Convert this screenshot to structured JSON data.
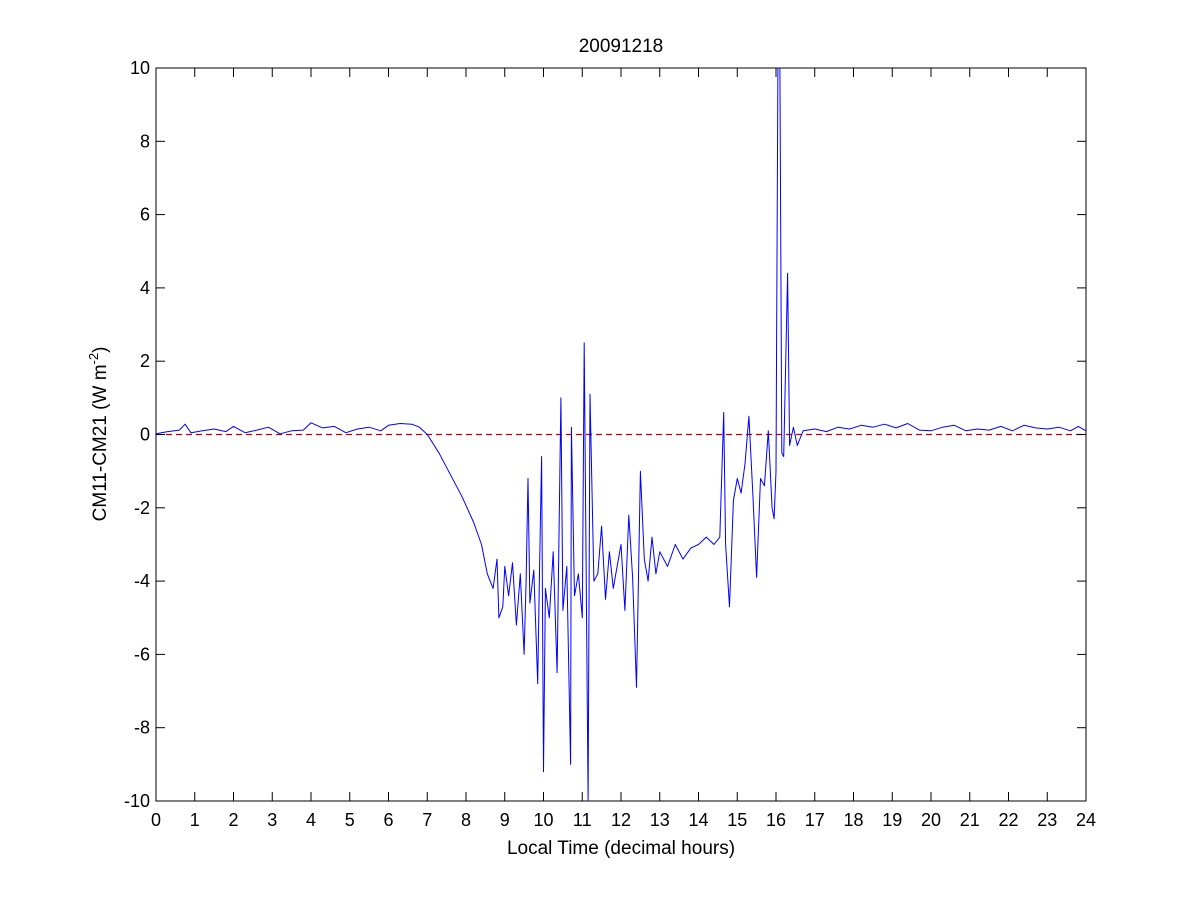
{
  "chart_data": {
    "type": "line",
    "title": "20091218",
    "xlabel": "Local Time (decimal hours)",
    "ylabel_main": "CM11-CM21 (W m",
    "ylabel_sup": "-2",
    "ylabel_close": ")",
    "xlim": [
      0,
      24
    ],
    "ylim": [
      -10,
      10
    ],
    "x_ticks": [
      0,
      1,
      2,
      3,
      4,
      5,
      6,
      7,
      8,
      9,
      10,
      11,
      12,
      13,
      14,
      15,
      16,
      17,
      18,
      19,
      20,
      21,
      22,
      23,
      24
    ],
    "y_ticks": [
      -10,
      -8,
      -6,
      -4,
      -2,
      0,
      2,
      4,
      6,
      8,
      10
    ],
    "grid": false,
    "colors": {
      "series": "#0000ff",
      "reference": "#c00000",
      "axes": "#000000"
    },
    "reference_line": {
      "y": 0,
      "style": "dashed"
    },
    "series": [
      {
        "points": [
          [
            0.0,
            0.02
          ],
          [
            0.3,
            0.08
          ],
          [
            0.6,
            0.12
          ],
          [
            0.75,
            0.28
          ],
          [
            0.9,
            0.05
          ],
          [
            1.2,
            0.1
          ],
          [
            1.5,
            0.15
          ],
          [
            1.8,
            0.08
          ],
          [
            2.0,
            0.22
          ],
          [
            2.3,
            0.05
          ],
          [
            2.6,
            0.12
          ],
          [
            2.9,
            0.2
          ],
          [
            3.2,
            0.02
          ],
          [
            3.5,
            0.1
          ],
          [
            3.8,
            0.12
          ],
          [
            4.0,
            0.32
          ],
          [
            4.3,
            0.18
          ],
          [
            4.6,
            0.22
          ],
          [
            4.9,
            0.05
          ],
          [
            5.2,
            0.15
          ],
          [
            5.5,
            0.2
          ],
          [
            5.8,
            0.1
          ],
          [
            6.0,
            0.25
          ],
          [
            6.3,
            0.3
          ],
          [
            6.6,
            0.28
          ],
          [
            6.8,
            0.2
          ],
          [
            7.0,
            0.0
          ],
          [
            7.3,
            -0.5
          ],
          [
            7.6,
            -1.1
          ],
          [
            7.9,
            -1.7
          ],
          [
            8.2,
            -2.4
          ],
          [
            8.4,
            -3.0
          ],
          [
            8.55,
            -3.8
          ],
          [
            8.7,
            -4.2
          ],
          [
            8.8,
            -3.4
          ],
          [
            8.85,
            -5.0
          ],
          [
            8.95,
            -4.7
          ],
          [
            9.0,
            -3.6
          ],
          [
            9.1,
            -4.4
          ],
          [
            9.2,
            -3.5
          ],
          [
            9.3,
            -5.2
          ],
          [
            9.4,
            -3.8
          ],
          [
            9.5,
            -6.0
          ],
          [
            9.55,
            -4.0
          ],
          [
            9.6,
            -1.2
          ],
          [
            9.65,
            -4.6
          ],
          [
            9.75,
            -3.7
          ],
          [
            9.85,
            -6.8
          ],
          [
            9.9,
            -3.6
          ],
          [
            9.95,
            -0.6
          ],
          [
            10.0,
            -9.2
          ],
          [
            10.05,
            -4.2
          ],
          [
            10.15,
            -5.0
          ],
          [
            10.25,
            -3.2
          ],
          [
            10.35,
            -6.5
          ],
          [
            10.45,
            1.0
          ],
          [
            10.5,
            -4.8
          ],
          [
            10.6,
            -3.6
          ],
          [
            10.7,
            -9.0
          ],
          [
            10.72,
            0.2
          ],
          [
            10.8,
            -4.4
          ],
          [
            10.9,
            -3.8
          ],
          [
            11.0,
            -5.0
          ],
          [
            11.05,
            2.5
          ],
          [
            11.1,
            -3.5
          ],
          [
            11.15,
            -10.0
          ],
          [
            11.2,
            1.1
          ],
          [
            11.3,
            -4.0
          ],
          [
            11.4,
            -3.8
          ],
          [
            11.5,
            -2.5
          ],
          [
            11.6,
            -4.5
          ],
          [
            11.7,
            -3.2
          ],
          [
            11.8,
            -4.2
          ],
          [
            11.9,
            -3.6
          ],
          [
            12.0,
            -3.0
          ],
          [
            12.1,
            -4.8
          ],
          [
            12.2,
            -2.2
          ],
          [
            12.3,
            -3.9
          ],
          [
            12.4,
            -6.9
          ],
          [
            12.5,
            -1.0
          ],
          [
            12.6,
            -3.4
          ],
          [
            12.7,
            -4.0
          ],
          [
            12.8,
            -2.8
          ],
          [
            12.9,
            -3.8
          ],
          [
            13.0,
            -3.2
          ],
          [
            13.2,
            -3.6
          ],
          [
            13.4,
            -3.0
          ],
          [
            13.6,
            -3.4
          ],
          [
            13.8,
            -3.1
          ],
          [
            14.0,
            -3.0
          ],
          [
            14.2,
            -2.8
          ],
          [
            14.4,
            -3.0
          ],
          [
            14.55,
            -2.8
          ],
          [
            14.65,
            0.6
          ],
          [
            14.7,
            -3.0
          ],
          [
            14.8,
            -4.7
          ],
          [
            14.9,
            -1.8
          ],
          [
            15.0,
            -1.2
          ],
          [
            15.1,
            -1.6
          ],
          [
            15.2,
            -0.8
          ],
          [
            15.3,
            0.5
          ],
          [
            15.4,
            -1.6
          ],
          [
            15.5,
            -3.9
          ],
          [
            15.6,
            -1.2
          ],
          [
            15.7,
            -1.4
          ],
          [
            15.8,
            0.1
          ],
          [
            15.9,
            -2.0
          ],
          [
            15.95,
            -2.3
          ],
          [
            16.0,
            -1.0
          ],
          [
            16.05,
            10.0
          ],
          [
            16.1,
            10.0
          ],
          [
            16.15,
            -0.5
          ],
          [
            16.2,
            -0.6
          ],
          [
            16.3,
            4.4
          ],
          [
            16.35,
            -0.3
          ],
          [
            16.45,
            0.2
          ],
          [
            16.55,
            -0.3
          ],
          [
            16.7,
            0.1
          ],
          [
            17.0,
            0.15
          ],
          [
            17.3,
            0.08
          ],
          [
            17.6,
            0.2
          ],
          [
            17.9,
            0.15
          ],
          [
            18.2,
            0.25
          ],
          [
            18.5,
            0.2
          ],
          [
            18.8,
            0.28
          ],
          [
            19.1,
            0.18
          ],
          [
            19.4,
            0.3
          ],
          [
            19.7,
            0.12
          ],
          [
            20.0,
            0.1
          ],
          [
            20.3,
            0.2
          ],
          [
            20.6,
            0.25
          ],
          [
            20.9,
            0.1
          ],
          [
            21.2,
            0.15
          ],
          [
            21.5,
            0.12
          ],
          [
            21.8,
            0.22
          ],
          [
            22.1,
            0.1
          ],
          [
            22.4,
            0.25
          ],
          [
            22.7,
            0.18
          ],
          [
            23.0,
            0.15
          ],
          [
            23.3,
            0.2
          ],
          [
            23.6,
            0.1
          ],
          [
            23.8,
            0.22
          ],
          [
            24.0,
            0.1
          ]
        ]
      }
    ]
  }
}
